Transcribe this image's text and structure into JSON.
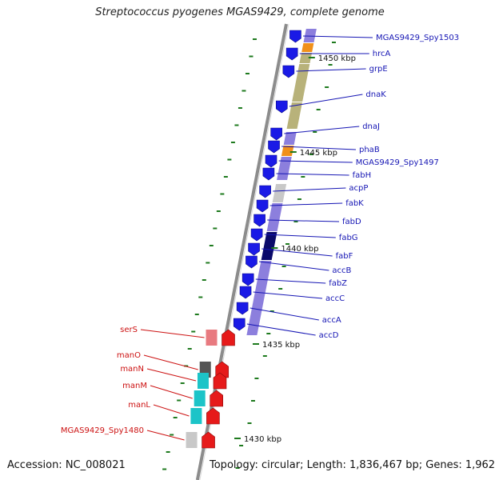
{
  "title": "Streptococcus pyogenes MGAS9429, complete genome",
  "accession": "Accession: NC_008021",
  "topology": "Topology: circular; Length: 1,836,467 bp; Genes: 1,962",
  "colors": {
    "backbone": "#8c8c8c",
    "forward_label": "#1515b4",
    "reverse_label": "#cc1111",
    "tick": "#1e7a1e",
    "cds_forward": "#1a1ae6",
    "cds_reverse": "#e61a1a",
    "category_olive": "#b8b27a",
    "category_purple": "#8c7fdd",
    "category_orange": "#f0901a",
    "category_cyan": "#1cc4c8",
    "category_pink": "#e87a80",
    "category_gray": "#c8c8c8",
    "category_navy": "#0a0a6a"
  },
  "scale_labels": [
    "1450 kbp",
    "1445 kbp",
    "1440 kbp",
    "1435 kbp",
    "1430 kbp"
  ],
  "forward_genes": [
    "MGAS9429_Spy1503",
    "hrcA",
    "grpE",
    "dnaK",
    "dnaJ",
    "phaB",
    "MGAS9429_Spy1497",
    "fabH",
    "acpP",
    "fabK",
    "fabD",
    "fabG",
    "fabF",
    "accB",
    "fabZ",
    "accC",
    "accA",
    "accD"
  ],
  "reverse_genes": [
    "serS",
    "manO",
    "manN",
    "manM",
    "manL",
    "MGAS9429_Spy1480"
  ]
}
